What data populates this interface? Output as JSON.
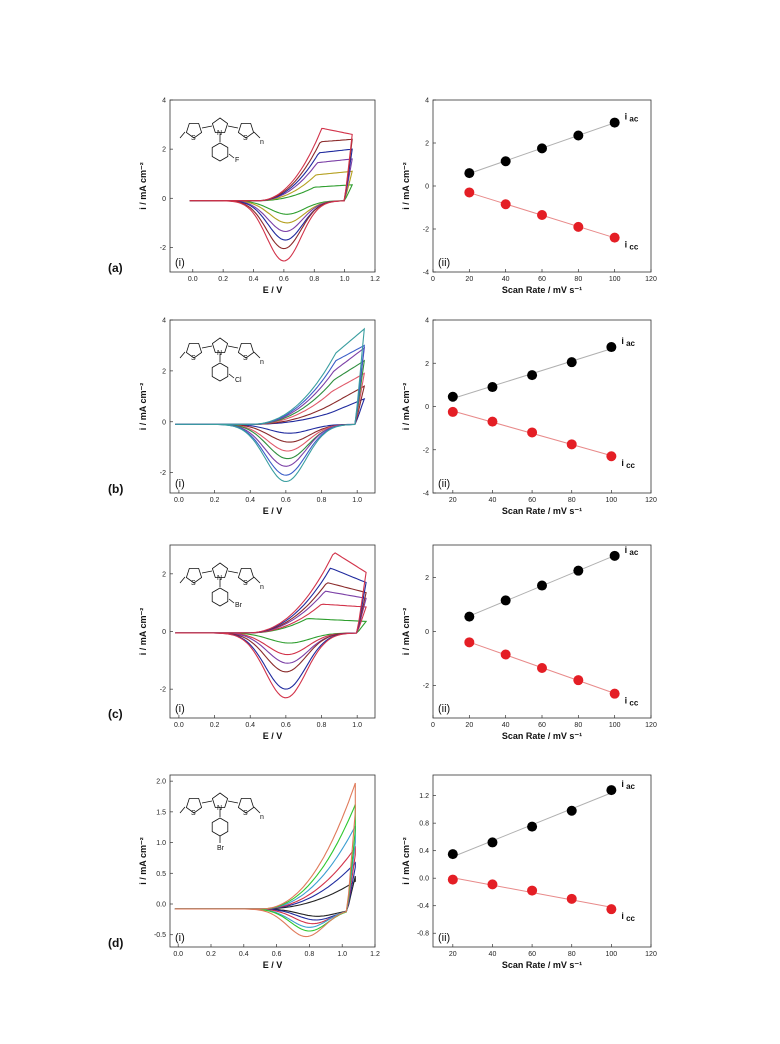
{
  "figure": {
    "rows": [
      {
        "label": "(a)",
        "substituent": "F",
        "cv": {
          "sublabel": "(i)",
          "xlabel": "E / V",
          "ylabel": "i / mA cm⁻²",
          "xlim": [
            -0.15,
            1.2
          ],
          "ylim": [
            -3,
            4
          ],
          "xticks": [
            "0.0",
            "0.2",
            "0.4",
            "0.6",
            "0.8",
            "1.0",
            "1.2"
          ],
          "yticks": [
            "-2",
            "0",
            "2",
            "4"
          ],
          "xtick_values": [
            0,
            0.2,
            0.4,
            0.6,
            0.8,
            1.0,
            1.2
          ],
          "ytick_values": [
            -2,
            0,
            2,
            4
          ],
          "vmax": 1.05,
          "onset": 0.42,
          "baseline": -0.1,
          "curves": [
            {
              "color": "#2e9e2e",
              "peak_a": 0.55,
              "peak_c": -0.55,
              "ea": 0.8,
              "ec": 0.62,
              "end": 0.65
            },
            {
              "color": "#b5a020",
              "peak_a": 1.05,
              "peak_c": -0.9,
              "ea": 0.81,
              "ec": 0.62,
              "end": 1.2
            },
            {
              "color": "#7b3fa6",
              "peak_a": 1.55,
              "peak_c": -1.25,
              "ea": 0.82,
              "ec": 0.61,
              "end": 1.7
            },
            {
              "color": "#1f2a9e",
              "peak_a": 1.95,
              "peak_c": -1.6,
              "ea": 0.83,
              "ec": 0.61,
              "end": 2.1
            },
            {
              "color": "#8a2a2a",
              "peak_a": 2.4,
              "peak_c": -1.95,
              "ea": 0.84,
              "ec": 0.6,
              "end": 2.5
            },
            {
              "color": "#d2334a",
              "peak_a": 2.95,
              "peak_c": -2.45,
              "ea": 0.85,
              "ec": 0.6,
              "end": 2.7
            }
          ]
        },
        "rate": {
          "sublabel": "(ii)",
          "xlabel": "Scan Rate / mV s⁻¹",
          "ylabel": "i / mA cm⁻²",
          "xlim": [
            0,
            120
          ],
          "ylim": [
            -4,
            4
          ],
          "xticks": [
            "0",
            "20",
            "40",
            "60",
            "80",
            "100",
            "120"
          ],
          "yticks": [
            "-4",
            "-2",
            "0",
            "2",
            "4"
          ],
          "xtick_values": [
            0,
            20,
            40,
            60,
            80,
            100,
            120
          ],
          "ytick_values": [
            -4,
            -2,
            0,
            2,
            4
          ],
          "x": [
            20,
            40,
            60,
            80,
            100
          ],
          "series": [
            {
              "name": "i ac",
              "color": "#000000",
              "values": [
                0.6,
                1.15,
                1.75,
                2.35,
                2.95
              ]
            },
            {
              "name": "i cc",
              "color": "#e41e25",
              "values": [
                -0.3,
                -0.85,
                -1.35,
                -1.9,
                -2.4
              ]
            }
          ]
        }
      },
      {
        "label": "(b)",
        "substituent": "Cl",
        "cv": {
          "sublabel": "(i)",
          "xlabel": "E / V",
          "ylabel": "i / mA cm⁻²",
          "xlim": [
            -0.05,
            1.1
          ],
          "ylim": [
            -2.8,
            4
          ],
          "xticks": [
            "0.0",
            "0.2",
            "0.4",
            "0.6",
            "0.8",
            "1.0"
          ],
          "yticks": [
            "-2",
            "0",
            "2",
            "4"
          ],
          "xtick_values": [
            0,
            0.2,
            0.4,
            0.6,
            0.8,
            1.0
          ],
          "ytick_values": [
            -2,
            0,
            2,
            4
          ],
          "vmax": 1.04,
          "onset": 0.4,
          "baseline": -0.1,
          "curves": [
            {
              "color": "#1f2a9e",
              "peak_a": 0.45,
              "peak_c": -0.35,
              "ea": 0.85,
              "ec": 0.62,
              "end": 1.0
            },
            {
              "color": "#8a2a2a",
              "peak_a": 0.8,
              "peak_c": -0.7,
              "ea": 0.86,
              "ec": 0.62,
              "end": 1.5
            },
            {
              "color": "#e05a6a",
              "peak_a": 1.3,
              "peak_c": -1.05,
              "ea": 0.86,
              "ec": 0.61,
              "end": 2.0
            },
            {
              "color": "#2e8e3e",
              "peak_a": 1.75,
              "peak_c": -1.35,
              "ea": 0.87,
              "ec": 0.61,
              "end": 2.5
            },
            {
              "color": "#7b3fa6",
              "peak_a": 2.1,
              "peak_c": -1.65,
              "ea": 0.87,
              "ec": 0.6,
              "end": 3.0
            },
            {
              "color": "#3a5ec8",
              "peak_a": 2.5,
              "peak_c": -2.0,
              "ea": 0.88,
              "ec": 0.6,
              "end": 3.1
            },
            {
              "color": "#3a9ea0",
              "peak_a": 2.8,
              "peak_c": -2.25,
              "ea": 0.88,
              "ec": 0.6,
              "end": 3.75
            }
          ]
        },
        "rate": {
          "sublabel": "(ii)",
          "xlabel": "Scan Rate / mV s⁻¹",
          "ylabel": "i / mA cm⁻²",
          "xlim": [
            10,
            120
          ],
          "ylim": [
            -4,
            4
          ],
          "xticks": [
            "20",
            "40",
            "60",
            "80",
            "100",
            "120"
          ],
          "yticks": [
            "-4",
            "-2",
            "0",
            "2",
            "4"
          ],
          "xtick_values": [
            20,
            40,
            60,
            80,
            100,
            120
          ],
          "ytick_values": [
            -4,
            -2,
            0,
            2,
            4
          ],
          "x": [
            20,
            40,
            60,
            80,
            100
          ],
          "series": [
            {
              "name": "i ac",
              "color": "#000000",
              "values": [
                0.45,
                0.9,
                1.45,
                2.05,
                2.75
              ]
            },
            {
              "name": "i cc",
              "color": "#e41e25",
              "values": [
                -0.25,
                -0.7,
                -1.2,
                -1.75,
                -2.3
              ]
            }
          ]
        }
      },
      {
        "label": "(c)",
        "substituent": "Br",
        "cv": {
          "sublabel": "(i)",
          "xlabel": "E / V",
          "ylabel": "i / mA cm⁻²",
          "xlim": [
            -0.05,
            1.1
          ],
          "ylim": [
            -3,
            3
          ],
          "xticks": [
            "0.0",
            "0.2",
            "0.4",
            "0.6",
            "0.8",
            "1.0"
          ],
          "yticks": [
            "-2",
            "0",
            "2"
          ],
          "xtick_values": [
            0,
            0.2,
            0.4,
            0.6,
            0.8,
            1.0
          ],
          "ytick_values": [
            -2,
            0,
            2
          ],
          "vmax": 1.05,
          "onset": 0.38,
          "baseline": -0.05,
          "curves": [
            {
              "color": "#2e9e2e",
              "peak_a": 0.5,
              "peak_c": -0.35,
              "ea": 0.72,
              "ec": 0.62,
              "end": 0.4
            },
            {
              "color": "#d2334a",
              "peak_a": 1.0,
              "peak_c": -0.75,
              "ea": 0.8,
              "ec": 0.61,
              "end": 0.9
            },
            {
              "color": "#7b3fa6",
              "peak_a": 1.45,
              "peak_c": -1.05,
              "ea": 0.82,
              "ec": 0.61,
              "end": 1.2
            },
            {
              "color": "#8a2a2a",
              "peak_a": 1.75,
              "peak_c": -1.35,
              "ea": 0.83,
              "ec": 0.6,
              "end": 1.4
            },
            {
              "color": "#1f2a9e",
              "peak_a": 2.25,
              "peak_c": -1.95,
              "ea": 0.85,
              "ec": 0.6,
              "end": 1.75
            },
            {
              "color": "#d2334a",
              "peak_a": 2.8,
              "peak_c": -2.25,
              "ea": 0.87,
              "ec": 0.6,
              "end": 2.1
            }
          ]
        },
        "rate": {
          "sublabel": "(ii)",
          "xlabel": "Scan Rate / mV s⁻¹",
          "ylabel": "i / mA cm⁻²",
          "xlim": [
            0,
            120
          ],
          "ylim": [
            -3.2,
            3.2
          ],
          "xticks": [
            "0",
            "20",
            "40",
            "60",
            "80",
            "100",
            "120"
          ],
          "yticks": [
            "-2",
            "0",
            "2"
          ],
          "xtick_values": [
            0,
            20,
            40,
            60,
            80,
            100,
            120
          ],
          "ytick_values": [
            -2,
            0,
            2
          ],
          "x": [
            20,
            40,
            60,
            80,
            100
          ],
          "series": [
            {
              "name": "i ac",
              "color": "#000000",
              "values": [
                0.55,
                1.15,
                1.7,
                2.25,
                2.8
              ]
            },
            {
              "name": "i cc",
              "color": "#e41e25",
              "values": [
                -0.4,
                -0.85,
                -1.35,
                -1.8,
                -2.3
              ]
            }
          ]
        }
      },
      {
        "label": "(d)",
        "substituent": "Br",
        "cv": {
          "sublabel": "(i)",
          "xlabel": "E / V",
          "ylabel": "i / mA cm⁻²",
          "xlim": [
            -0.05,
            1.2
          ],
          "ylim": [
            -0.7,
            2.1
          ],
          "xticks": [
            "0.0",
            "0.2",
            "0.4",
            "0.6",
            "0.8",
            "1.0",
            "1.2"
          ],
          "yticks": [
            "-0.5",
            "0.0",
            "0.5",
            "1.0",
            "1.5",
            "2.0"
          ],
          "xtick_values": [
            0,
            0.2,
            0.4,
            0.6,
            0.8,
            1.0,
            1.2
          ],
          "ytick_values": [
            -0.5,
            0,
            0.5,
            1.0,
            1.5,
            2.0
          ],
          "vmax": 1.08,
          "onset": 0.5,
          "baseline": -0.08,
          "curves": [
            {
              "color": "#222222",
              "peak_a": 0.45,
              "peak_c": -0.12,
              "ea": 1.08,
              "ec": 0.85,
              "end": 0.55
            },
            {
              "color": "#1f2a9e",
              "peak_a": 0.75,
              "peak_c": -0.18,
              "ea": 1.08,
              "ec": 0.84,
              "end": 0.7
            },
            {
              "color": "#d2334a",
              "peak_a": 1.0,
              "peak_c": -0.24,
              "ea": 1.08,
              "ec": 0.82,
              "end": 0.9
            },
            {
              "color": "#3a9ed0",
              "peak_a": 1.35,
              "peak_c": -0.3,
              "ea": 1.08,
              "ec": 0.8,
              "end": 1.1
            },
            {
              "color": "#2ec82e",
              "peak_a": 1.7,
              "peak_c": -0.36,
              "ea": 1.08,
              "ec": 0.8,
              "end": 1.3
            },
            {
              "color": "#e07a5a",
              "peak_a": 2.05,
              "peak_c": -0.45,
              "ea": 1.08,
              "ec": 0.78,
              "end": 1.6
            }
          ]
        },
        "rate": {
          "sublabel": "(ii)",
          "xlabel": "Scan Rate / mV s⁻¹",
          "ylabel": "i / mA cm⁻²",
          "xlim": [
            10,
            120
          ],
          "ylim": [
            -1.0,
            1.5
          ],
          "xticks": [
            "20",
            "40",
            "60",
            "80",
            "100",
            "120"
          ],
          "yticks": [
            "-0.8",
            "-0.4",
            "0.0",
            "0.4",
            "0.8",
            "1.2"
          ],
          "xtick_values": [
            20,
            40,
            60,
            80,
            100,
            120
          ],
          "ytick_values": [
            -0.8,
            -0.4,
            0,
            0.4,
            0.8,
            1.2
          ],
          "x": [
            20,
            40,
            60,
            80,
            100
          ],
          "series": [
            {
              "name": "i ac",
              "color": "#000000",
              "values": [
                0.35,
                0.52,
                0.75,
                0.98,
                1.28
              ]
            },
            {
              "name": "i cc",
              "color": "#e41e25",
              "values": [
                -0.02,
                -0.09,
                -0.18,
                -0.3,
                -0.45
              ]
            }
          ]
        }
      }
    ]
  },
  "chart_data": [
    {
      "type": "scatter",
      "title": "",
      "xlabel": "Scan Rate / mV s⁻¹",
      "ylabel": "i / mA cm⁻²",
      "ylim": [
        -4,
        4
      ],
      "x": [
        20,
        40,
        60,
        80,
        100
      ],
      "series": [
        {
          "name": "i ac",
          "values": [
            0.6,
            1.15,
            1.75,
            2.35,
            2.95
          ]
        },
        {
          "name": "i cc",
          "values": [
            -0.3,
            -0.85,
            -1.35,
            -1.9,
            -2.4
          ]
        }
      ]
    },
    {
      "type": "scatter",
      "title": "",
      "xlabel": "Scan Rate / mV s⁻¹",
      "ylabel": "i / mA cm⁻²",
      "ylim": [
        -4,
        4
      ],
      "x": [
        20,
        40,
        60,
        80,
        100
      ],
      "series": [
        {
          "name": "i ac",
          "values": [
            0.45,
            0.9,
            1.45,
            2.05,
            2.75
          ]
        },
        {
          "name": "i cc",
          "values": [
            -0.25,
            -0.7,
            -1.2,
            -1.75,
            -2.3
          ]
        }
      ]
    },
    {
      "type": "scatter",
      "title": "",
      "xlabel": "Scan Rate / mV s⁻¹",
      "ylabel": "i / mA cm⁻²",
      "ylim": [
        -3.2,
        3.2
      ],
      "x": [
        20,
        40,
        60,
        80,
        100
      ],
      "series": [
        {
          "name": "i ac",
          "values": [
            0.55,
            1.15,
            1.7,
            2.25,
            2.8
          ]
        },
        {
          "name": "i cc",
          "values": [
            -0.4,
            -0.85,
            -1.35,
            -1.8,
            -2.3
          ]
        }
      ]
    },
    {
      "type": "scatter",
      "title": "",
      "xlabel": "Scan Rate / mV s⁻¹",
      "ylabel": "i / mA cm⁻²",
      "ylim": [
        -1.0,
        1.5
      ],
      "x": [
        20,
        40,
        60,
        80,
        100
      ],
      "series": [
        {
          "name": "i ac",
          "values": [
            0.35,
            0.52,
            0.75,
            0.98,
            1.28
          ]
        },
        {
          "name": "i cc",
          "values": [
            -0.02,
            -0.09,
            -0.18,
            -0.3,
            -0.45
          ]
        }
      ]
    }
  ]
}
